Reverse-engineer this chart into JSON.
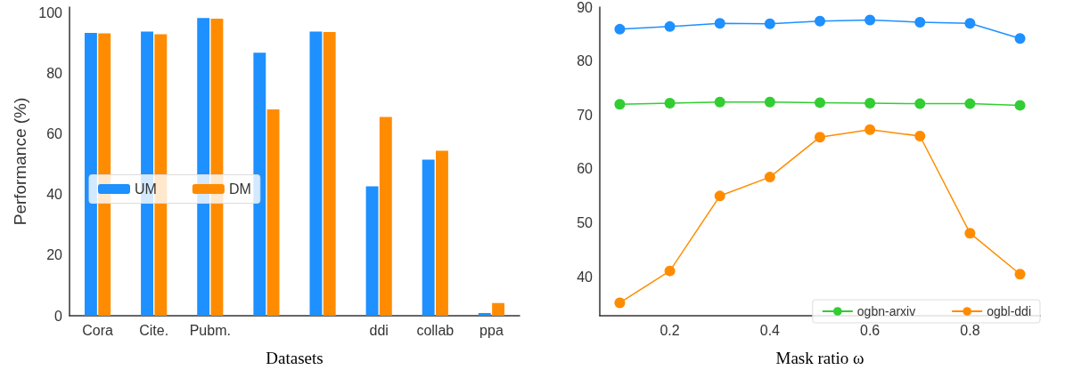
{
  "chart_data": [
    {
      "type": "bar",
      "xlabel": "Datasets",
      "ylabel": "Performance (%)",
      "categories": [
        "Cora",
        "Cite.",
        "Pubm.",
        null,
        null,
        "ddi",
        "collab",
        "ppa"
      ],
      "series": [
        {
          "name": "UM",
          "color": "#1e90ff",
          "values": [
            93.5,
            93.9,
            98.4,
            86.9,
            93.9,
            42.8,
            51.6,
            0.9
          ]
        },
        {
          "name": "DM",
          "color": "#ff8c00",
          "values": [
            93.3,
            93.0,
            98.2,
            68.2,
            93.8,
            65.7,
            54.5,
            4.2
          ]
        }
      ],
      "ylim": [
        0,
        102
      ],
      "yticks": [
        0,
        20,
        40,
        60,
        80,
        100
      ],
      "grid": false,
      "legend": "left"
    },
    {
      "type": "line",
      "xlabel": "Mask ratio ω",
      "x": [
        0.1,
        0.2,
        0.3,
        0.4,
        0.5,
        0.6,
        0.7,
        0.8,
        0.9
      ],
      "series": [
        {
          "color": "#1e90ff",
          "values": [
            85.9,
            86.4,
            87.0,
            86.9,
            87.4,
            87.6,
            87.2,
            87.0,
            84.2
          ]
        },
        {
          "name": "ogbn-arxiv",
          "color": "#32cd32",
          "values": [
            72.0,
            72.2,
            72.4,
            72.4,
            72.3,
            72.2,
            72.1,
            72.1,
            71.8
          ]
        },
        {
          "name": "ogbl-ddi",
          "color": "#ff8c00",
          "values": [
            35.2,
            41.1,
            55.0,
            58.5,
            65.9,
            67.3,
            66.1,
            48.1,
            40.5
          ]
        }
      ],
      "xlim": [
        0.06,
        0.94
      ],
      "xticks": [
        0.2,
        0.4,
        0.6,
        0.8
      ],
      "ylim": [
        32.8,
        90
      ],
      "yticks": [
        40,
        50,
        60,
        70,
        80,
        90
      ],
      "grid": false,
      "legend": "bottom right",
      "marker": "circle"
    }
  ]
}
